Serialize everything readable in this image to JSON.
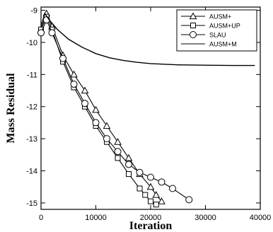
{
  "chart_data": {
    "type": "line",
    "title": "",
    "xlabel": "Iteration",
    "ylabel": "Mass Residual",
    "xlim": [
      0,
      40000
    ],
    "ylim": [
      -15.2,
      -8.9
    ],
    "xticks": [
      0,
      10000,
      20000,
      30000,
      40000
    ],
    "yticks": [
      -9,
      -10,
      -11,
      -12,
      -13,
      -14,
      -15
    ],
    "xtick_labels": [
      "0",
      "10000",
      "20000",
      "30000",
      "40000"
    ],
    "ytick_labels": [
      "-9",
      "-10",
      "-11",
      "-12",
      "-13",
      "-14",
      "-15"
    ],
    "grid": false,
    "legend_position": "top-right",
    "series": [
      {
        "name": "AUSM+",
        "marker": "triangle",
        "x": [
          0,
          1000,
          2000,
          4000,
          6000,
          8000,
          10000,
          12000,
          14000,
          16000,
          18000,
          20000,
          21000,
          22000
        ],
        "y": [
          -9.6,
          -9.1,
          -9.5,
          -10.4,
          -11.0,
          -11.5,
          -12.1,
          -12.6,
          -13.1,
          -13.6,
          -14.1,
          -14.5,
          -14.75,
          -14.95
        ]
      },
      {
        "name": "AUSM+UP",
        "marker": "square",
        "x": [
          0,
          1000,
          2000,
          4000,
          6000,
          8000,
          10000,
          12000,
          14000,
          16000,
          18000,
          19000,
          20000,
          21000
        ],
        "y": [
          -9.6,
          -9.2,
          -9.6,
          -10.6,
          -11.4,
          -12.0,
          -12.6,
          -13.1,
          -13.6,
          -14.1,
          -14.55,
          -14.75,
          -14.95,
          -15.05
        ]
      },
      {
        "name": "SLAU",
        "marker": "circle",
        "x": [
          0,
          1000,
          2000,
          4000,
          6000,
          8000,
          10000,
          12000,
          14000,
          16000,
          18000,
          20000,
          22000,
          24000,
          27000
        ],
        "y": [
          -9.7,
          -9.3,
          -9.7,
          -10.5,
          -11.3,
          -11.9,
          -12.5,
          -13.0,
          -13.4,
          -13.8,
          -14.05,
          -14.2,
          -14.35,
          -14.55,
          -14.9
        ]
      },
      {
        "name": "AUSM+M",
        "marker": "none",
        "x": [
          0,
          700,
          1500,
          3000,
          5000,
          7500,
          10000,
          12500,
          15000,
          17500,
          20000,
          25000,
          30000,
          35000,
          39000
        ],
        "y": [
          -9.5,
          -9.1,
          -9.3,
          -9.6,
          -9.9,
          -10.15,
          -10.35,
          -10.48,
          -10.56,
          -10.62,
          -10.66,
          -10.7,
          -10.71,
          -10.72,
          -10.72
        ]
      }
    ]
  }
}
